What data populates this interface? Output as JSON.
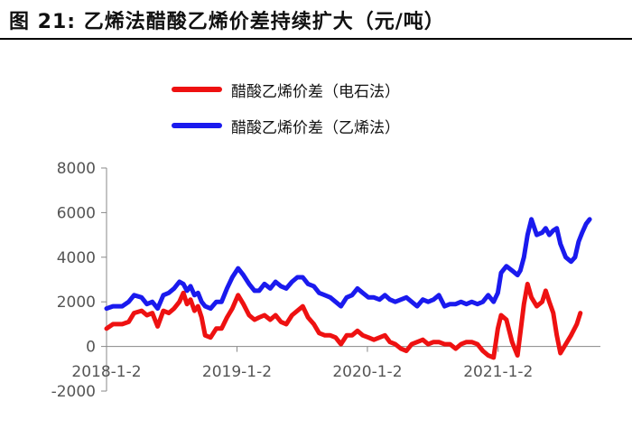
{
  "title": "图  21:  乙烯法醋酸乙烯价差持续扩大（元/吨）",
  "legend": {
    "calcium": "醋酸乙烯价差（电石法）",
    "ethylene": "醋酸乙烯价差（乙烯法）"
  },
  "colors": {
    "calcium": "#ee1111",
    "ethylene": "#1a1aee",
    "axis": "#888888",
    "text": "#555555"
  },
  "chart_data": {
    "type": "line",
    "title": "图  21:  乙烯法醋酸乙烯价差持续扩大（元/吨）",
    "xlabel": "",
    "ylabel": "",
    "ylim": [
      -2000,
      8000
    ],
    "yticks": [
      -2000,
      0,
      2000,
      4000,
      6000,
      8000
    ],
    "xlim": [
      "2018-01-02",
      "2021-10-15"
    ],
    "xticks": [
      {
        "date": "2018-01-02",
        "label": "2018-1-2"
      },
      {
        "date": "2019-01-02",
        "label": "2019-1-2"
      },
      {
        "date": "2020-01-02",
        "label": "2020-1-2"
      },
      {
        "date": "2021-01-02",
        "label": "2021-1-2"
      }
    ],
    "grid": false,
    "legend_position": "top",
    "series": [
      {
        "name": "醋酸乙烯价差（电石法）",
        "points": [
          [
            "2018-01-02",
            800
          ],
          [
            "2018-01-20",
            1000
          ],
          [
            "2018-02-15",
            1000
          ],
          [
            "2018-03-05",
            1100
          ],
          [
            "2018-03-20",
            1500
          ],
          [
            "2018-04-10",
            1600
          ],
          [
            "2018-04-25",
            1400
          ],
          [
            "2018-05-10",
            1500
          ],
          [
            "2018-05-25",
            900
          ],
          [
            "2018-06-10",
            1600
          ],
          [
            "2018-06-25",
            1500
          ],
          [
            "2018-07-10",
            1700
          ],
          [
            "2018-07-25",
            2000
          ],
          [
            "2018-08-05",
            2400
          ],
          [
            "2018-08-15",
            1900
          ],
          [
            "2018-08-25",
            2100
          ],
          [
            "2018-09-05",
            1600
          ],
          [
            "2018-09-15",
            1800
          ],
          [
            "2018-09-25",
            1300
          ],
          [
            "2018-10-05",
            500
          ],
          [
            "2018-10-20",
            400
          ],
          [
            "2018-11-05",
            800
          ],
          [
            "2018-11-20",
            800
          ],
          [
            "2018-12-05",
            1300
          ],
          [
            "2018-12-20",
            1700
          ],
          [
            "2019-01-05",
            2300
          ],
          [
            "2019-01-20",
            1900
          ],
          [
            "2019-02-05",
            1400
          ],
          [
            "2019-02-20",
            1200
          ],
          [
            "2019-03-05",
            1300
          ],
          [
            "2019-03-20",
            1400
          ],
          [
            "2019-04-05",
            1200
          ],
          [
            "2019-04-20",
            1400
          ],
          [
            "2019-05-05",
            1100
          ],
          [
            "2019-05-20",
            1000
          ],
          [
            "2019-06-05",
            1400
          ],
          [
            "2019-06-20",
            1600
          ],
          [
            "2019-07-05",
            1800
          ],
          [
            "2019-07-20",
            1300
          ],
          [
            "2019-08-05",
            1000
          ],
          [
            "2019-08-20",
            600
          ],
          [
            "2019-09-05",
            500
          ],
          [
            "2019-09-20",
            500
          ],
          [
            "2019-10-05",
            400
          ],
          [
            "2019-10-20",
            100
          ],
          [
            "2019-11-05",
            500
          ],
          [
            "2019-11-20",
            500
          ],
          [
            "2019-12-05",
            700
          ],
          [
            "2019-12-20",
            500
          ],
          [
            "2020-01-05",
            400
          ],
          [
            "2020-01-20",
            300
          ],
          [
            "2020-02-05",
            400
          ],
          [
            "2020-02-20",
            500
          ],
          [
            "2020-03-05",
            200
          ],
          [
            "2020-03-20",
            100
          ],
          [
            "2020-04-05",
            -100
          ],
          [
            "2020-04-20",
            -200
          ],
          [
            "2020-05-05",
            100
          ],
          [
            "2020-05-20",
            200
          ],
          [
            "2020-06-05",
            300
          ],
          [
            "2020-06-20",
            100
          ],
          [
            "2020-07-05",
            200
          ],
          [
            "2020-07-20",
            200
          ],
          [
            "2020-08-05",
            100
          ],
          [
            "2020-08-20",
            100
          ],
          [
            "2020-09-05",
            -100
          ],
          [
            "2020-09-20",
            100
          ],
          [
            "2020-10-05",
            200
          ],
          [
            "2020-10-20",
            200
          ],
          [
            "2020-11-05",
            100
          ],
          [
            "2020-11-20",
            -200
          ],
          [
            "2020-12-05",
            -400
          ],
          [
            "2020-12-20",
            -500
          ],
          [
            "2021-01-01",
            800
          ],
          [
            "2021-01-10",
            1400
          ],
          [
            "2021-01-25",
            1200
          ],
          [
            "2021-02-10",
            200
          ],
          [
            "2021-02-25",
            -400
          ],
          [
            "2021-03-05",
            600
          ],
          [
            "2021-03-15",
            1900
          ],
          [
            "2021-03-25",
            2800
          ],
          [
            "2021-04-05",
            2200
          ],
          [
            "2021-04-20",
            1800
          ],
          [
            "2021-05-05",
            2000
          ],
          [
            "2021-05-15",
            2500
          ],
          [
            "2021-05-25",
            2000
          ],
          [
            "2021-06-05",
            1500
          ],
          [
            "2021-06-15",
            500
          ],
          [
            "2021-06-25",
            -300
          ],
          [
            "2021-07-10",
            100
          ],
          [
            "2021-07-25",
            500
          ],
          [
            "2021-08-10",
            1000
          ],
          [
            "2021-08-20",
            1500
          ]
        ]
      },
      {
        "name": "醋酸乙烯价差（乙烯法）",
        "points": [
          [
            "2018-01-02",
            1700
          ],
          [
            "2018-01-20",
            1800
          ],
          [
            "2018-02-15",
            1800
          ],
          [
            "2018-03-05",
            2000
          ],
          [
            "2018-03-20",
            2300
          ],
          [
            "2018-04-10",
            2200
          ],
          [
            "2018-04-25",
            1900
          ],
          [
            "2018-05-10",
            2000
          ],
          [
            "2018-05-25",
            1700
          ],
          [
            "2018-06-10",
            2300
          ],
          [
            "2018-06-25",
            2400
          ],
          [
            "2018-07-10",
            2600
          ],
          [
            "2018-07-25",
            2900
          ],
          [
            "2018-08-05",
            2800
          ],
          [
            "2018-08-15",
            2500
          ],
          [
            "2018-08-25",
            2700
          ],
          [
            "2018-09-05",
            2300
          ],
          [
            "2018-09-15",
            2400
          ],
          [
            "2018-09-25",
            2000
          ],
          [
            "2018-10-05",
            1800
          ],
          [
            "2018-10-20",
            1700
          ],
          [
            "2018-11-05",
            2000
          ],
          [
            "2018-11-20",
            2000
          ],
          [
            "2018-12-05",
            2600
          ],
          [
            "2018-12-20",
            3100
          ],
          [
            "2019-01-05",
            3500
          ],
          [
            "2019-01-20",
            3200
          ],
          [
            "2019-02-05",
            2800
          ],
          [
            "2019-02-20",
            2500
          ],
          [
            "2019-03-05",
            2500
          ],
          [
            "2019-03-20",
            2800
          ],
          [
            "2019-04-05",
            2600
          ],
          [
            "2019-04-20",
            2900
          ],
          [
            "2019-05-05",
            2700
          ],
          [
            "2019-05-20",
            2600
          ],
          [
            "2019-06-05",
            2900
          ],
          [
            "2019-06-20",
            3100
          ],
          [
            "2019-07-05",
            3100
          ],
          [
            "2019-07-20",
            2800
          ],
          [
            "2019-08-05",
            2700
          ],
          [
            "2019-08-20",
            2400
          ],
          [
            "2019-09-05",
            2300
          ],
          [
            "2019-09-20",
            2200
          ],
          [
            "2019-10-05",
            2000
          ],
          [
            "2019-10-20",
            1800
          ],
          [
            "2019-11-05",
            2200
          ],
          [
            "2019-11-20",
            2300
          ],
          [
            "2019-12-05",
            2600
          ],
          [
            "2019-12-20",
            2400
          ],
          [
            "2020-01-05",
            2200
          ],
          [
            "2020-01-20",
            2200
          ],
          [
            "2020-02-05",
            2100
          ],
          [
            "2020-02-20",
            2300
          ],
          [
            "2020-03-05",
            2100
          ],
          [
            "2020-03-20",
            2000
          ],
          [
            "2020-04-05",
            2100
          ],
          [
            "2020-04-20",
            2200
          ],
          [
            "2020-05-05",
            2000
          ],
          [
            "2020-05-20",
            1800
          ],
          [
            "2020-06-05",
            2100
          ],
          [
            "2020-06-20",
            2000
          ],
          [
            "2020-07-05",
            2100
          ],
          [
            "2020-07-20",
            2300
          ],
          [
            "2020-08-05",
            1800
          ],
          [
            "2020-08-20",
            1900
          ],
          [
            "2020-09-05",
            1900
          ],
          [
            "2020-09-20",
            2000
          ],
          [
            "2020-10-05",
            1900
          ],
          [
            "2020-10-20",
            2000
          ],
          [
            "2020-11-05",
            1900
          ],
          [
            "2020-11-20",
            2000
          ],
          [
            "2020-12-05",
            2300
          ],
          [
            "2020-12-20",
            2000
          ],
          [
            "2021-01-01",
            2400
          ],
          [
            "2021-01-10",
            3300
          ],
          [
            "2021-01-25",
            3600
          ],
          [
            "2021-02-10",
            3400
          ],
          [
            "2021-02-25",
            3200
          ],
          [
            "2021-03-05",
            3400
          ],
          [
            "2021-03-15",
            4000
          ],
          [
            "2021-03-25",
            5000
          ],
          [
            "2021-04-05",
            5700
          ],
          [
            "2021-04-20",
            5000
          ],
          [
            "2021-05-05",
            5100
          ],
          [
            "2021-05-15",
            5300
          ],
          [
            "2021-05-25",
            5000
          ],
          [
            "2021-06-05",
            5200
          ],
          [
            "2021-06-15",
            5300
          ],
          [
            "2021-06-25",
            4600
          ],
          [
            "2021-07-10",
            4000
          ],
          [
            "2021-07-25",
            3800
          ],
          [
            "2021-08-05",
            4000
          ],
          [
            "2021-08-15",
            4700
          ],
          [
            "2021-08-25",
            5100
          ],
          [
            "2021-09-05",
            5500
          ],
          [
            "2021-09-15",
            5700
          ]
        ]
      }
    ]
  }
}
